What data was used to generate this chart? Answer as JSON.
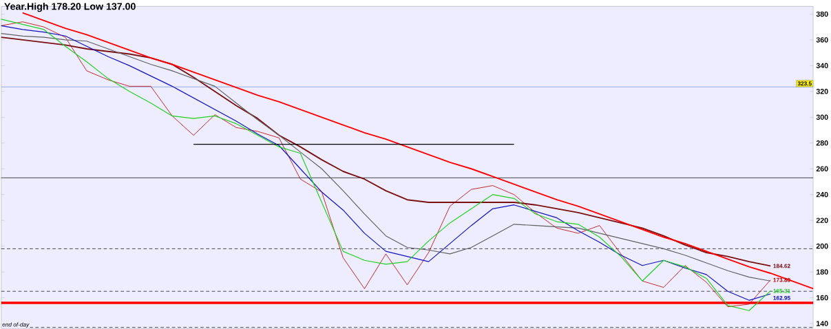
{
  "chart_data": {
    "type": "line",
    "title": "Year.High 178.20 Low 137.00",
    "categories": [
      null,
      null,
      null,
      null,
      null,
      null,
      null,
      null,
      null,
      null,
      null,
      null,
      null,
      null,
      null,
      null,
      null,
      null,
      null,
      null,
      null,
      null,
      null,
      null,
      null,
      null,
      null,
      null,
      null,
      null,
      null,
      null,
      null,
      null,
      null,
      null,
      null,
      null,
      null
    ],
    "ylim": [
      136,
      386
    ],
    "yticks": [
      140,
      160,
      180,
      200,
      220,
      240,
      260,
      280,
      300,
      320,
      340,
      360,
      380
    ],
    "tick_labels": "y",
    "grid": false,
    "series": [
      {
        "color": "#c00000",
        "values": [
          371,
          374,
          370,
          362,
          336,
          329,
          324,
          324,
          301,
          286,
          302,
          292,
          289,
          284,
          252,
          242,
          191,
          167,
          194,
          170,
          195,
          231,
          244,
          247,
          240,
          226,
          214,
          210,
          216,
          194,
          173,
          168,
          185,
          172,
          153,
          155,
          173.8,
          null,
          null
        ],
        "value_labels": [
          null,
          null,
          null,
          null,
          null,
          null,
          null,
          null,
          null,
          null,
          null,
          null,
          null,
          null,
          null,
          null,
          null,
          null,
          null,
          null,
          null,
          null,
          null,
          null,
          null,
          null,
          null,
          null,
          null,
          null,
          null,
          null,
          null,
          null,
          null,
          null,
          "173.80",
          null,
          null
        ]
      },
      {
        "color": "#7b1010",
        "values": [
          362,
          360,
          358,
          356,
          353,
          351,
          349,
          346,
          341,
          331,
          320,
          309,
          299,
          286,
          277,
          267,
          258,
          252,
          243,
          236,
          234,
          234,
          234,
          234,
          234,
          232,
          229,
          226,
          222,
          218,
          214,
          208,
          201,
          195,
          192,
          188,
          184.62,
          null,
          null
        ],
        "value_labels": [
          null,
          null,
          null,
          null,
          null,
          null,
          null,
          null,
          null,
          null,
          null,
          null,
          null,
          null,
          null,
          null,
          null,
          null,
          null,
          null,
          null,
          null,
          null,
          null,
          null,
          null,
          null,
          null,
          null,
          null,
          null,
          null,
          null,
          null,
          null,
          null,
          "184.62",
          null,
          null
        ]
      },
      {
        "color": "#606060",
        "values": [
          365,
          363,
          362,
          360,
          359,
          353,
          347,
          341,
          336,
          330,
          324,
          311,
          298,
          286,
          273,
          260,
          243,
          225,
          208,
          199,
          197,
          194,
          199,
          208,
          217,
          216,
          215,
          214,
          210,
          206,
          202,
          198,
          193,
          187,
          181,
          176,
          173,
          null,
          null
        ]
      },
      {
        "color": "#1010c0",
        "values": [
          371,
          368,
          366,
          363,
          355,
          347,
          340,
          332,
          324,
          315,
          306,
          297,
          287,
          278,
          260,
          242,
          228,
          210,
          196,
          192,
          188,
          202,
          216,
          229,
          232,
          227,
          222,
          212,
          203,
          193,
          185,
          189,
          183,
          178,
          165,
          158,
          162.95,
          null,
          null
        ],
        "value_labels": [
          null,
          null,
          null,
          null,
          null,
          null,
          null,
          null,
          null,
          null,
          null,
          null,
          null,
          null,
          null,
          null,
          null,
          null,
          null,
          null,
          null,
          null,
          null,
          null,
          null,
          null,
          null,
          null,
          null,
          null,
          null,
          null,
          null,
          null,
          null,
          null,
          "162.95",
          null,
          null
        ]
      },
      {
        "color": "#20d020",
        "values": [
          376,
          372,
          368,
          355,
          343,
          330,
          320,
          311,
          301,
          299,
          301,
          295,
          286,
          277,
          272,
          234,
          196,
          189,
          186,
          188,
          204,
          218,
          229,
          240,
          237,
          225,
          219,
          217,
          207,
          192,
          173,
          189,
          184,
          175,
          154,
          150,
          165.31,
          null,
          null
        ],
        "value_labels": [
          null,
          null,
          null,
          null,
          null,
          null,
          null,
          null,
          null,
          null,
          null,
          null,
          null,
          null,
          null,
          null,
          null,
          null,
          null,
          null,
          null,
          null,
          null,
          null,
          null,
          null,
          null,
          null,
          null,
          null,
          null,
          null,
          null,
          null,
          null,
          null,
          "165.31",
          null,
          null
        ]
      },
      {
        "color": "#ff0000",
        "values": [
          null,
          381,
          375,
          369,
          364,
          358,
          352,
          346,
          341,
          335,
          329,
          323,
          317,
          312,
          306,
          300,
          294,
          288,
          283,
          277,
          271,
          265,
          260,
          254,
          248,
          242,
          236,
          231,
          225,
          219,
          213,
          207,
          202,
          196,
          190,
          184,
          179,
          173,
          167
        ]
      },
      {
        "color": "#000000",
        "values": [
          null,
          null,
          null,
          null,
          null,
          null,
          null,
          null,
          null,
          279,
          279,
          279,
          279,
          279,
          279,
          279,
          279,
          279,
          279,
          279,
          279,
          279,
          279,
          279,
          279,
          null,
          null,
          null,
          null,
          null,
          null,
          null,
          null,
          null,
          null,
          null,
          null,
          null,
          null
        ]
      }
    ],
    "ref_lines": [
      {
        "axis": "y",
        "value": 323.5,
        "color": "#7090d0",
        "line_style": "solid",
        "label": "323.5"
      },
      {
        "axis": "y",
        "value": 253,
        "color": "#000000",
        "line_style": "solid"
      },
      {
        "axis": "y",
        "value": 198,
        "color": "#000000",
        "line_style": "dashed"
      },
      {
        "axis": "y",
        "value": 165,
        "color": "#000000",
        "line_style": "dashed"
      },
      {
        "axis": "y",
        "value": 156,
        "color": "#ff0000",
        "line_style": "solid"
      },
      {
        "axis": "y",
        "value": 137,
        "color": "#000000",
        "line_style": "dashed"
      }
    ],
    "annotations": [
      "end of-day"
    ]
  }
}
